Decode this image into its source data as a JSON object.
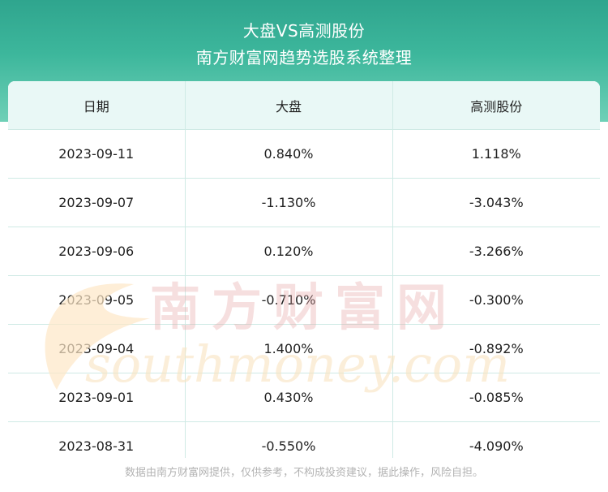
{
  "header": {
    "title": "大盘VS高测股份",
    "subtitle": "南方财富网趋势选股系统整理"
  },
  "table": {
    "columns": [
      "日期",
      "大盘",
      "高测股份"
    ],
    "rows": [
      [
        "2023-09-11",
        "0.840%",
        "1.118%"
      ],
      [
        "2023-09-07",
        "-1.130%",
        "-3.043%"
      ],
      [
        "2023-09-06",
        "0.120%",
        "-3.266%"
      ],
      [
        "2023-09-05",
        "-0.710%",
        "-0.300%"
      ],
      [
        "2023-09-04",
        "1.400%",
        "-0.892%"
      ],
      [
        "2023-09-01",
        "0.430%",
        "-0.085%"
      ],
      [
        "2023-08-31",
        "-0.550%",
        "-4.090%"
      ]
    ]
  },
  "watermark": {
    "cn": "南方财富网",
    "en": "southmoney.com"
  },
  "footer": {
    "disclaimer": "数据由南方财富网提供，仅供参考，不构成投资建议，据此操作，风险自担。"
  },
  "colors": {
    "header_start": "#2fa58e",
    "header_end": "#6fd0b7",
    "table_header_bg": "#e9f8f6",
    "grid": "#cfeae5",
    "footer_text": "#b3b3b3"
  }
}
